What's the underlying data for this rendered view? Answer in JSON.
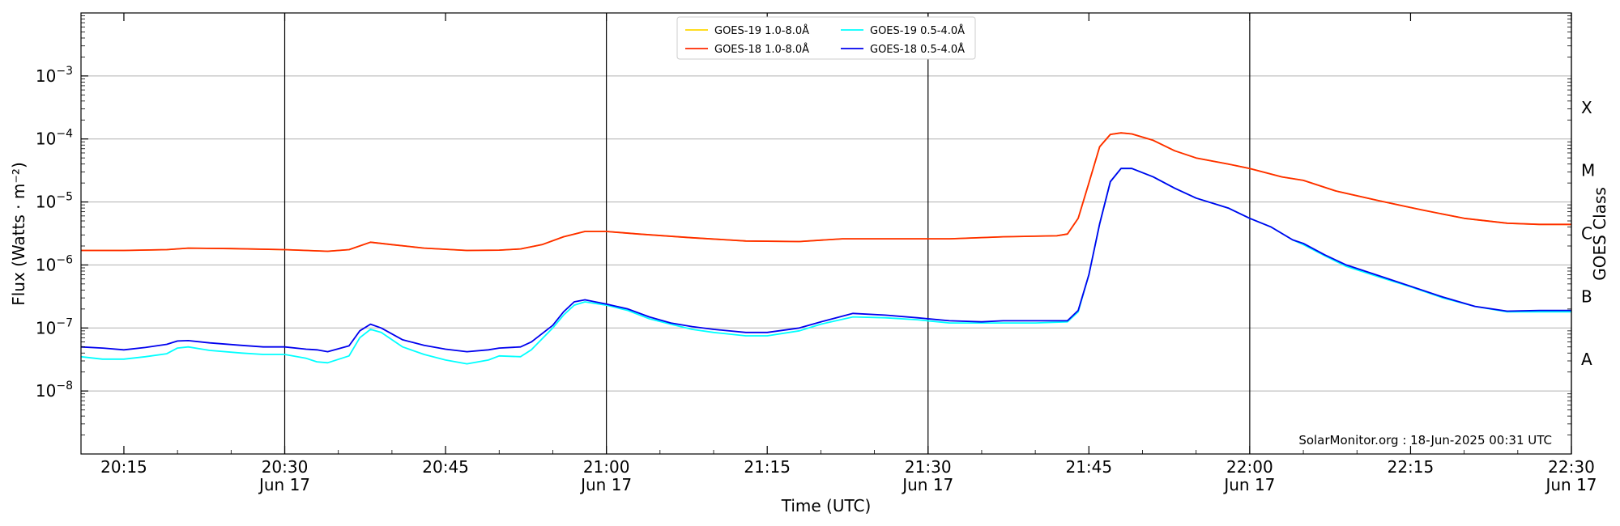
{
  "chart_data": {
    "type": "line",
    "xlabel": "Time (UTC)",
    "ylabel": "Flux (Watts · m⁻²)",
    "y2label": "GOES Class",
    "yscale": "log",
    "ylim": [
      1e-09,
      0.01
    ],
    "xlim": [
      "2025-06-17 20:11",
      "2025-06-17 22:30"
    ],
    "y_ticks": [
      {
        "value": 1e-08,
        "base": "10",
        "exp": "−8"
      },
      {
        "value": 1e-07,
        "base": "10",
        "exp": "−7"
      },
      {
        "value": 1e-06,
        "base": "10",
        "exp": "−6"
      },
      {
        "value": 1e-05,
        "base": "10",
        "exp": "−5"
      },
      {
        "value": 0.0001,
        "base": "10",
        "exp": "−4"
      },
      {
        "value": 0.001,
        "base": "10",
        "exp": "−3"
      }
    ],
    "x_ticks": [
      {
        "time": "20:15",
        "line1": "20:15",
        "line2": ""
      },
      {
        "time": "20:30",
        "line1": "20:30",
        "line2": "Jun 17"
      },
      {
        "time": "20:45",
        "line1": "20:45",
        "line2": ""
      },
      {
        "time": "21:00",
        "line1": "21:00",
        "line2": "Jun 17"
      },
      {
        "time": "21:15",
        "line1": "21:15",
        "line2": ""
      },
      {
        "time": "21:30",
        "line1": "21:30",
        "line2": "Jun 17"
      },
      {
        "time": "21:45",
        "line1": "21:45",
        "line2": ""
      },
      {
        "time": "22:00",
        "line1": "22:00",
        "line2": "Jun 17"
      },
      {
        "time": "22:15",
        "line1": "22:15",
        "line2": ""
      },
      {
        "time": "22:30",
        "line1": "22:30",
        "line2": "Jun 17"
      }
    ],
    "vertical_lines": [
      "20:30",
      "21:00",
      "21:30",
      "22:00"
    ],
    "goes_classes": [
      {
        "label": "A",
        "value": 3.16e-08
      },
      {
        "label": "B",
        "value": 3.16e-07
      },
      {
        "label": "C",
        "value": 3.16e-06
      },
      {
        "label": "M",
        "value": 3.16e-05
      },
      {
        "label": "X",
        "value": 0.000316
      }
    ],
    "grid": "horizontal at decades",
    "legend": {
      "placement": "top-center",
      "entries": [
        {
          "label": "GOES-19 1.0-8.0Å",
          "color": "#ffd700"
        },
        {
          "label": "GOES-19 0.5-4.0Å",
          "color": "#00ffff"
        },
        {
          "label": "GOES-18 1.0-8.0Å",
          "color": "#ff2a00"
        },
        {
          "label": "GOES-18 0.5-4.0Å",
          "color": "#0000ee"
        }
      ]
    },
    "credit": "SolarMonitor.org : 18-Jun-2025 00:31 UTC",
    "series": [
      {
        "name": "GOES-19 1.0-8.0Å",
        "color": "#ffd700",
        "points": [
          [
            "20:11",
            1.7e-06
          ],
          [
            "20:15",
            1.7e-06
          ],
          [
            "20:19",
            1.75e-06
          ],
          [
            "20:21",
            1.85e-06
          ],
          [
            "20:25",
            1.82e-06
          ],
          [
            "20:30",
            1.75e-06
          ],
          [
            "20:34",
            1.65e-06
          ],
          [
            "20:36",
            1.75e-06
          ],
          [
            "20:38",
            2.3e-06
          ],
          [
            "20:40",
            2.1e-06
          ],
          [
            "20:43",
            1.85e-06
          ],
          [
            "20:47",
            1.7e-06
          ],
          [
            "20:50",
            1.72e-06
          ],
          [
            "20:52",
            1.8e-06
          ],
          [
            "20:54",
            2.1e-06
          ],
          [
            "20:56",
            2.8e-06
          ],
          [
            "20:58",
            3.4e-06
          ],
          [
            "21:00",
            3.4e-06
          ],
          [
            "21:03",
            3.1e-06
          ],
          [
            "21:08",
            2.7e-06
          ],
          [
            "21:13",
            2.4e-06
          ],
          [
            "21:18",
            2.35e-06
          ],
          [
            "21:22",
            2.6e-06
          ],
          [
            "21:27",
            2.6e-06
          ],
          [
            "21:32",
            2.6e-06
          ],
          [
            "21:37",
            2.8e-06
          ],
          [
            "21:42",
            2.9e-06
          ],
          [
            "21:43",
            3.1e-06
          ],
          [
            "21:44",
            5.5e-06
          ],
          [
            "21:45",
            2e-05
          ],
          [
            "21:46",
            7.5e-05
          ],
          [
            "21:47",
            0.000118
          ],
          [
            "21:48",
            0.000125
          ],
          [
            "21:49",
            0.00012
          ],
          [
            "21:51",
            9.5e-05
          ],
          [
            "21:53",
            6.5e-05
          ],
          [
            "21:55",
            5e-05
          ],
          [
            "21:58",
            4e-05
          ],
          [
            "22:00",
            3.4e-05
          ],
          [
            "22:03",
            2.5e-05
          ],
          [
            "22:05",
            2.2e-05
          ],
          [
            "22:08",
            1.5e-05
          ],
          [
            "22:12",
            1.05e-05
          ],
          [
            "22:16",
            7.5e-06
          ],
          [
            "22:20",
            5.5e-06
          ],
          [
            "22:24",
            4.6e-06
          ],
          [
            "22:27",
            4.4e-06
          ],
          [
            "22:30",
            4.4e-06
          ]
        ]
      },
      {
        "name": "GOES-18 1.0-8.0Å",
        "color": "#ff2a00",
        "points": [
          [
            "20:11",
            1.7e-06
          ],
          [
            "20:15",
            1.7e-06
          ],
          [
            "20:19",
            1.75e-06
          ],
          [
            "20:21",
            1.85e-06
          ],
          [
            "20:25",
            1.82e-06
          ],
          [
            "20:30",
            1.75e-06
          ],
          [
            "20:34",
            1.65e-06
          ],
          [
            "20:36",
            1.75e-06
          ],
          [
            "20:38",
            2.3e-06
          ],
          [
            "20:40",
            2.1e-06
          ],
          [
            "20:43",
            1.85e-06
          ],
          [
            "20:47",
            1.7e-06
          ],
          [
            "20:50",
            1.72e-06
          ],
          [
            "20:52",
            1.8e-06
          ],
          [
            "20:54",
            2.1e-06
          ],
          [
            "20:56",
            2.8e-06
          ],
          [
            "20:58",
            3.4e-06
          ],
          [
            "21:00",
            3.4e-06
          ],
          [
            "21:03",
            3.1e-06
          ],
          [
            "21:08",
            2.7e-06
          ],
          [
            "21:13",
            2.4e-06
          ],
          [
            "21:18",
            2.35e-06
          ],
          [
            "21:22",
            2.6e-06
          ],
          [
            "21:27",
            2.6e-06
          ],
          [
            "21:32",
            2.6e-06
          ],
          [
            "21:37",
            2.8e-06
          ],
          [
            "21:42",
            2.9e-06
          ],
          [
            "21:43",
            3.1e-06
          ],
          [
            "21:44",
            5.5e-06
          ],
          [
            "21:45",
            2e-05
          ],
          [
            "21:46",
            7.5e-05
          ],
          [
            "21:47",
            0.000118
          ],
          [
            "21:48",
            0.000125
          ],
          [
            "21:49",
            0.00012
          ],
          [
            "21:51",
            9.5e-05
          ],
          [
            "21:53",
            6.5e-05
          ],
          [
            "21:55",
            5e-05
          ],
          [
            "21:58",
            4e-05
          ],
          [
            "22:00",
            3.4e-05
          ],
          [
            "22:03",
            2.5e-05
          ],
          [
            "22:05",
            2.2e-05
          ],
          [
            "22:08",
            1.5e-05
          ],
          [
            "22:12",
            1.05e-05
          ],
          [
            "22:16",
            7.5e-06
          ],
          [
            "22:20",
            5.5e-06
          ],
          [
            "22:24",
            4.6e-06
          ],
          [
            "22:27",
            4.4e-06
          ],
          [
            "22:30",
            4.4e-06
          ]
        ]
      },
      {
        "name": "GOES-19 0.5-4.0Å",
        "color": "#00ffff",
        "points": [
          [
            "20:11",
            3.5e-08
          ],
          [
            "20:13",
            3.2e-08
          ],
          [
            "20:15",
            3.2e-08
          ],
          [
            "20:17",
            3.5e-08
          ],
          [
            "20:19",
            3.9e-08
          ],
          [
            "20:20",
            4.8e-08
          ],
          [
            "20:21",
            5e-08
          ],
          [
            "20:23",
            4.4e-08
          ],
          [
            "20:26",
            4e-08
          ],
          [
            "20:28",
            3.8e-08
          ],
          [
            "20:30",
            3.8e-08
          ],
          [
            "20:32",
            3.3e-08
          ],
          [
            "20:33",
            2.9e-08
          ],
          [
            "20:34",
            2.8e-08
          ],
          [
            "20:36",
            3.6e-08
          ],
          [
            "20:37",
            7e-08
          ],
          [
            "20:38",
            9.5e-08
          ],
          [
            "20:39",
            8.5e-08
          ],
          [
            "20:41",
            5e-08
          ],
          [
            "20:43",
            3.8e-08
          ],
          [
            "20:45",
            3.1e-08
          ],
          [
            "20:47",
            2.7e-08
          ],
          [
            "20:49",
            3.1e-08
          ],
          [
            "20:50",
            3.6e-08
          ],
          [
            "20:52",
            3.5e-08
          ],
          [
            "20:53",
            4.5e-08
          ],
          [
            "20:55",
            1e-07
          ],
          [
            "20:56",
            1.6e-07
          ],
          [
            "20:57",
            2.3e-07
          ],
          [
            "20:58",
            2.6e-07
          ],
          [
            "21:00",
            2.3e-07
          ],
          [
            "21:02",
            1.9e-07
          ],
          [
            "21:04",
            1.4e-07
          ],
          [
            "21:06",
            1.15e-07
          ],
          [
            "21:08",
            9.5e-08
          ],
          [
            "21:10",
            8.5e-08
          ],
          [
            "21:13",
            7.5e-08
          ],
          [
            "21:15",
            7.5e-08
          ],
          [
            "21:18",
            9e-08
          ],
          [
            "21:20",
            1.15e-07
          ],
          [
            "21:23",
            1.5e-07
          ],
          [
            "21:26",
            1.45e-07
          ],
          [
            "21:29",
            1.35e-07
          ],
          [
            "21:32",
            1.2e-07
          ],
          [
            "21:35",
            1.2e-07
          ],
          [
            "21:37",
            1.2e-07
          ],
          [
            "21:40",
            1.2e-07
          ],
          [
            "21:43",
            1.25e-07
          ],
          [
            "21:44",
            1.8e-07
          ],
          [
            "21:45",
            7e-07
          ],
          [
            "21:46",
            4.5e-06
          ],
          [
            "21:47",
            2.1e-05
          ],
          [
            "21:48",
            3.4e-05
          ],
          [
            "21:49",
            3.4e-05
          ],
          [
            "21:51",
            2.5e-05
          ],
          [
            "21:53",
            1.65e-05
          ],
          [
            "21:55",
            1.15e-05
          ],
          [
            "21:58",
            8e-06
          ],
          [
            "22:00",
            5.5e-06
          ],
          [
            "22:02",
            4e-06
          ],
          [
            "22:04",
            2.5e-06
          ],
          [
            "22:05",
            2.1e-06
          ],
          [
            "22:07",
            1.4e-06
          ],
          [
            "22:09",
            9.5e-07
          ],
          [
            "22:12",
            6.5e-07
          ],
          [
            "22:15",
            4.5e-07
          ],
          [
            "22:18",
            3e-07
          ],
          [
            "22:21",
            2.2e-07
          ],
          [
            "22:24",
            1.8e-07
          ],
          [
            "22:27",
            1.8e-07
          ],
          [
            "22:30",
            1.8e-07
          ]
        ]
      },
      {
        "name": "GOES-18 0.5-4.0Å",
        "color": "#0000ee",
        "points": [
          [
            "20:11",
            5e-08
          ],
          [
            "20:13",
            4.8e-08
          ],
          [
            "20:15",
            4.5e-08
          ],
          [
            "20:17",
            4.9e-08
          ],
          [
            "20:19",
            5.5e-08
          ],
          [
            "20:20",
            6.2e-08
          ],
          [
            "20:21",
            6.3e-08
          ],
          [
            "20:23",
            5.8e-08
          ],
          [
            "20:26",
            5.3e-08
          ],
          [
            "20:28",
            5e-08
          ],
          [
            "20:30",
            5e-08
          ],
          [
            "20:32",
            4.6e-08
          ],
          [
            "20:33",
            4.5e-08
          ],
          [
            "20:34",
            4.2e-08
          ],
          [
            "20:36",
            5.2e-08
          ],
          [
            "20:37",
            9e-08
          ],
          [
            "20:38",
            1.15e-07
          ],
          [
            "20:39",
            1e-07
          ],
          [
            "20:41",
            6.5e-08
          ],
          [
            "20:43",
            5.3e-08
          ],
          [
            "20:45",
            4.6e-08
          ],
          [
            "20:47",
            4.2e-08
          ],
          [
            "20:49",
            4.5e-08
          ],
          [
            "20:50",
            4.8e-08
          ],
          [
            "20:52",
            5e-08
          ],
          [
            "20:53",
            6e-08
          ],
          [
            "20:55",
            1.1e-07
          ],
          [
            "20:56",
            1.8e-07
          ],
          [
            "20:57",
            2.6e-07
          ],
          [
            "20:58",
            2.8e-07
          ],
          [
            "21:00",
            2.4e-07
          ],
          [
            "21:02",
            2e-07
          ],
          [
            "21:04",
            1.5e-07
          ],
          [
            "21:06",
            1.2e-07
          ],
          [
            "21:08",
            1.05e-07
          ],
          [
            "21:10",
            9.5e-08
          ],
          [
            "21:13",
            8.5e-08
          ],
          [
            "21:15",
            8.5e-08
          ],
          [
            "21:18",
            1e-07
          ],
          [
            "21:20",
            1.25e-07
          ],
          [
            "21:23",
            1.7e-07
          ],
          [
            "21:26",
            1.6e-07
          ],
          [
            "21:29",
            1.45e-07
          ],
          [
            "21:32",
            1.3e-07
          ],
          [
            "21:35",
            1.25e-07
          ],
          [
            "21:37",
            1.3e-07
          ],
          [
            "21:40",
            1.3e-07
          ],
          [
            "21:43",
            1.3e-07
          ],
          [
            "21:44",
            1.9e-07
          ],
          [
            "21:45",
            7e-07
          ],
          [
            "21:46",
            4.5e-06
          ],
          [
            "21:47",
            2.1e-05
          ],
          [
            "21:48",
            3.4e-05
          ],
          [
            "21:49",
            3.4e-05
          ],
          [
            "21:51",
            2.5e-05
          ],
          [
            "21:53",
            1.65e-05
          ],
          [
            "21:55",
            1.15e-05
          ],
          [
            "21:58",
            8e-06
          ],
          [
            "22:00",
            5.5e-06
          ],
          [
            "22:02",
            4e-06
          ],
          [
            "22:04",
            2.5e-06
          ],
          [
            "22:05",
            2.2e-06
          ],
          [
            "22:07",
            1.45e-06
          ],
          [
            "22:09",
            1e-06
          ],
          [
            "22:12",
            6.8e-07
          ],
          [
            "22:15",
            4.6e-07
          ],
          [
            "22:18",
            3.1e-07
          ],
          [
            "22:21",
            2.2e-07
          ],
          [
            "22:24",
            1.85e-07
          ],
          [
            "22:27",
            1.9e-07
          ],
          [
            "22:30",
            1.9e-07
          ]
        ]
      }
    ]
  }
}
